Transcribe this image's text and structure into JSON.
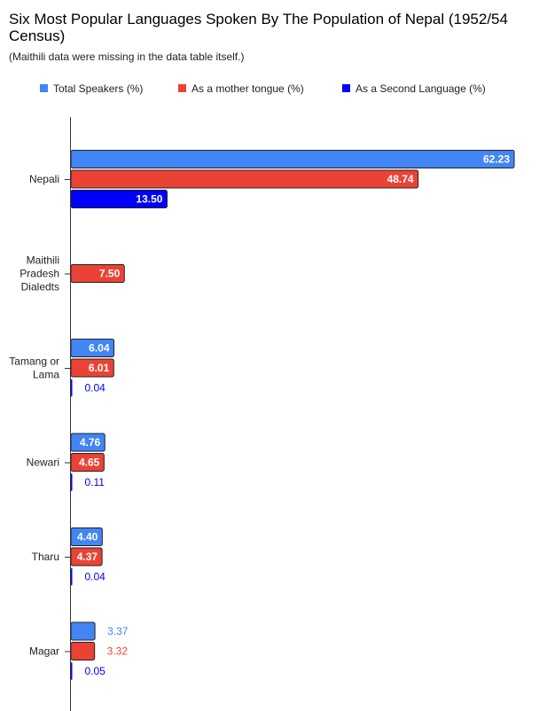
{
  "chart_data": {
    "type": "bar",
    "orientation": "horizontal",
    "title_lines": [
      "Six Most Popular Languages Spoken By The Population of Nepal (1952/54",
      "Census)"
    ],
    "subtitle": "(Maithili data were missing in the data table itself.)",
    "legend_position": "top",
    "grid": false,
    "xlim": [
      0,
      62.23
    ],
    "categories": [
      {
        "lines": [
          "Nepali"
        ]
      },
      {
        "lines": [
          "Maithili",
          "Pradesh",
          "Dialedts"
        ]
      },
      {
        "lines": [
          "Tamang or",
          "Lama"
        ]
      },
      {
        "lines": [
          "Newari"
        ]
      },
      {
        "lines": [
          "Tharu"
        ]
      },
      {
        "lines": [
          "Magar"
        ]
      }
    ],
    "series": [
      {
        "name": "Total Speakers (%)",
        "color": "#4285f4",
        "values": [
          62.23,
          null,
          6.04,
          4.76,
          4.4,
          3.37
        ],
        "labels": [
          "62.23",
          "",
          "6.04",
          "4.76",
          "4.40",
          "3.37"
        ]
      },
      {
        "name": "As a mother tongue (%)",
        "color": "#ea4335",
        "values": [
          48.74,
          7.5,
          6.01,
          4.65,
          4.37,
          3.32
        ],
        "labels": [
          "48.74",
          "7.50",
          "6.01",
          "4.65",
          "4.37",
          "3.32"
        ]
      },
      {
        "name": "As a Second Language (%)",
        "color": "#0000ff",
        "values": [
          13.5,
          null,
          0.04,
          0.11,
          0.04,
          0.05
        ],
        "labels": [
          "13.50",
          "",
          "0.04",
          "0.11",
          "0.04",
          "0.05"
        ]
      }
    ]
  }
}
